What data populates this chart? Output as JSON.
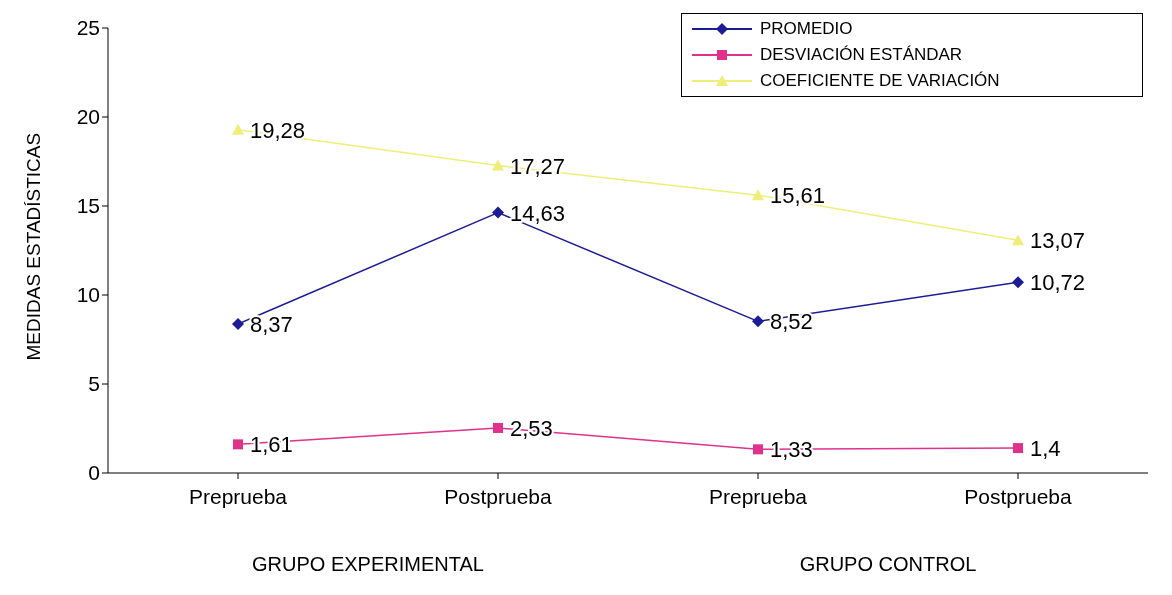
{
  "chart_data": {
    "type": "line",
    "ylabel": "MEDIDAS ESTADÍSTICAS",
    "categories": [
      "Preprueba",
      "Postprueba",
      "Preprueba",
      "Postprueba"
    ],
    "annotations": [
      "GRUPO EXPERIMENTAL",
      "GRUPO CONTROL"
    ],
    "series": [
      {
        "name": "PROMEDIO",
        "color": "#1c1c96",
        "marker": "diamond",
        "values": [
          8.37,
          14.63,
          8.52,
          10.72
        ],
        "value_labels": [
          "8,37",
          "14,63",
          "8,52",
          "10,72"
        ]
      },
      {
        "name": "DESVIACIÓN ESTÁNDAR",
        "color": "#e0328c",
        "marker": "square",
        "values": [
          1.61,
          2.53,
          1.33,
          1.4
        ],
        "value_labels": [
          "1,61",
          "2,53",
          "1,33",
          "1,4"
        ]
      },
      {
        "name": "COEFICIENTE DE VARIACIÓN",
        "color": "#eeee78",
        "marker": "triangle",
        "values": [
          19.28,
          17.27,
          15.61,
          13.07
        ],
        "value_labels": [
          "19,28",
          "17,27",
          "15,61",
          "13,07"
        ]
      }
    ],
    "ylim": [
      0,
      25
    ],
    "yticks": [
      0,
      5,
      10,
      15,
      20,
      25
    ],
    "grid": false,
    "legend": "top right"
  }
}
